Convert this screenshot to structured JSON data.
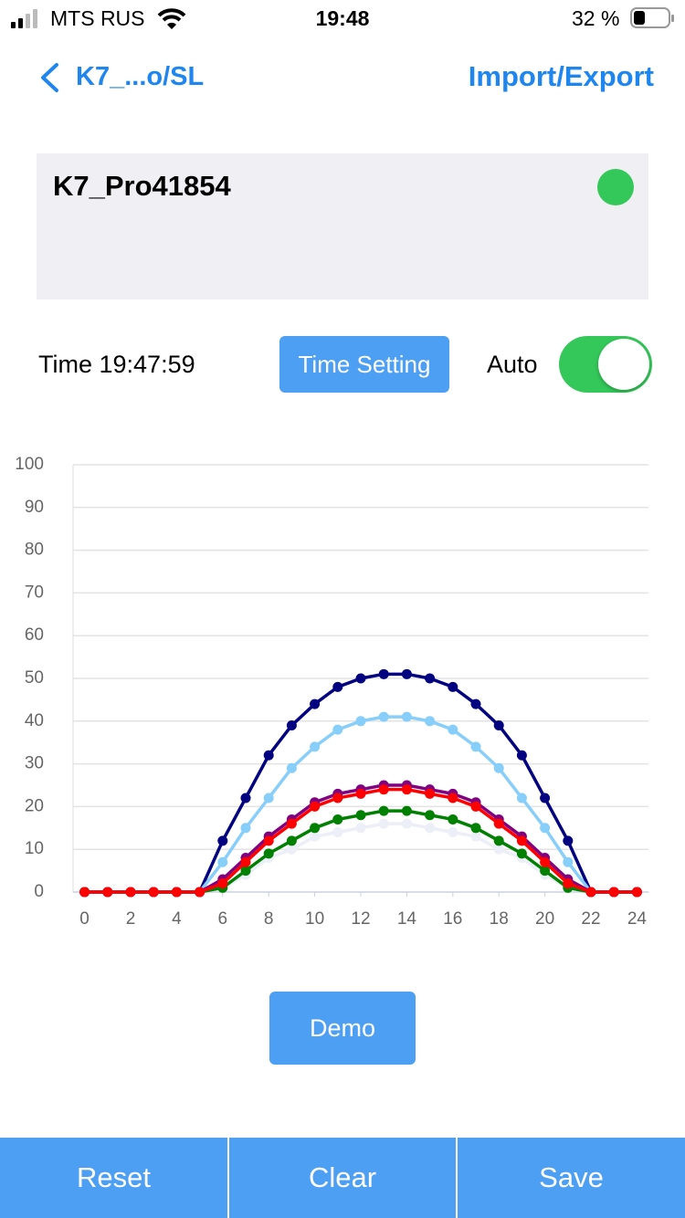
{
  "status_bar": {
    "carrier": "MTS RUS",
    "time": "19:48",
    "battery": "32 %"
  },
  "nav": {
    "back": "K7_...o/SL",
    "action": "Import/Export"
  },
  "device": {
    "name": "K7_Pro41854"
  },
  "time_row": {
    "time": "Time 19:47:59",
    "button": "Time Setting",
    "auto_label": "Auto"
  },
  "chart_data": {
    "type": "line",
    "x": [
      0,
      1,
      2,
      3,
      4,
      5,
      6,
      7,
      8,
      9,
      10,
      11,
      12,
      13,
      14,
      15,
      16,
      17,
      18,
      19,
      20,
      21,
      22,
      23,
      24
    ],
    "xlim": [
      -0.5,
      24.5
    ],
    "xticks": [
      0,
      2,
      4,
      6,
      8,
      10,
      12,
      14,
      16,
      18,
      20,
      22,
      24
    ],
    "ylim": [
      0,
      100
    ],
    "yticks": [
      0,
      10,
      20,
      30,
      40,
      50,
      60,
      70,
      80,
      90,
      100
    ],
    "grid": true,
    "series": [
      {
        "color": "#eceef8",
        "values": [
          0,
          0,
          0,
          0,
          0,
          0,
          1,
          4,
          8,
          10,
          13,
          14,
          15,
          16,
          16,
          15,
          14,
          13,
          10,
          8,
          4,
          1,
          0,
          0,
          0
        ]
      },
      {
        "color": "#000080",
        "values": [
          0,
          0,
          0,
          0,
          0,
          0,
          12,
          22,
          32,
          39,
          44,
          48,
          50,
          51,
          51,
          50,
          48,
          44,
          39,
          32,
          22,
          12,
          0,
          0,
          0
        ]
      },
      {
        "color": "#87cefa",
        "values": [
          0,
          0,
          0,
          0,
          0,
          0,
          7,
          15,
          22,
          29,
          34,
          38,
          40,
          41,
          41,
          40,
          38,
          34,
          29,
          22,
          15,
          7,
          0,
          0,
          0
        ]
      },
      {
        "color": "#008000",
        "values": [
          0,
          0,
          0,
          0,
          0,
          0,
          1,
          5,
          9,
          12,
          15,
          17,
          18,
          19,
          19,
          18,
          17,
          15,
          12,
          9,
          5,
          1,
          0,
          0,
          0
        ]
      },
      {
        "color": "#800080",
        "values": [
          0,
          0,
          0,
          0,
          0,
          0,
          3,
          8,
          13,
          17,
          21,
          23,
          24,
          25,
          25,
          24,
          23,
          21,
          17,
          13,
          8,
          3,
          0,
          0,
          0
        ]
      },
      {
        "color": "#ff0000",
        "values": [
          0,
          0,
          0,
          0,
          0,
          0,
          2,
          7,
          12,
          16,
          20,
          22,
          23,
          24,
          24,
          23,
          22,
          20,
          16,
          12,
          7,
          2,
          0,
          0,
          0
        ]
      }
    ]
  },
  "demo_button": "Demo",
  "toolbar": [
    "Reset",
    "Clear",
    "Save"
  ]
}
